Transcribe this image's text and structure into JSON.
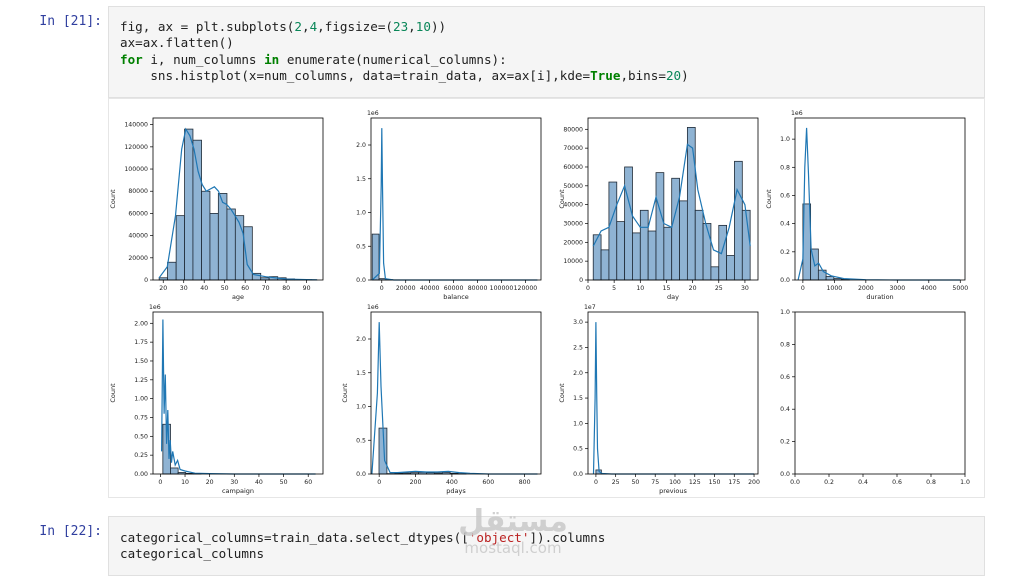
{
  "cells": [
    {
      "prompt": "In [21]:",
      "code_lines": [
        "fig, ax = plt.subplots(2,4,figsize=(23,10))",
        "ax=ax.flatten()",
        "for i, num_columns in enumerate(numerical_columns):",
        "    sns.histplot(x=num_columns, data=train_data, ax=ax[i],kde=True,bins=20)"
      ]
    },
    {
      "prompt": "In [22]:",
      "code_lines": [
        "categorical_columns=train_data.select_dtypes(['object']).columns",
        "categorical_columns"
      ]
    }
  ],
  "watermark": {
    "arabic": "مستقل",
    "latin": "mostaql.com"
  },
  "colors": {
    "bar_fill": "#8fb3d3",
    "bar_edge": "#1f2a36",
    "kde_line": "#1f77b4",
    "prompt": "#303f9f"
  },
  "chart_data": [
    {
      "type": "bar",
      "xlabel": "age",
      "ylabel": "Count",
      "offset": "",
      "xlim": [
        15,
        98
      ],
      "ylim": [
        0,
        146000
      ],
      "xticks": [
        20,
        30,
        40,
        50,
        60,
        70,
        80,
        90
      ],
      "yticks": [
        0,
        20000,
        40000,
        60000,
        80000,
        100000,
        120000,
        140000
      ],
      "bin_edges": [
        18,
        22.1,
        26.3,
        30.4,
        34.5,
        38.7,
        42.8,
        46.9,
        51.1,
        55.2,
        59.3,
        63.5,
        67.6,
        71.7,
        75.9,
        80,
        84.1,
        88.3,
        92.4,
        95
      ],
      "values": [
        2000,
        16000,
        58000,
        136000,
        126000,
        80000,
        60000,
        78000,
        64000,
        58000,
        48000,
        6000,
        2000,
        3000,
        2000,
        1000,
        500,
        300,
        200
      ],
      "kde_x": [
        18,
        22,
        26,
        29,
        31,
        33,
        35,
        37,
        39,
        41,
        43,
        45,
        47,
        49,
        51,
        53,
        55,
        57,
        59,
        61,
        64,
        70,
        80,
        95
      ],
      "kde_y": [
        2000,
        12000,
        58000,
        118000,
        136000,
        130000,
        118000,
        98000,
        86000,
        80000,
        82000,
        84000,
        80000,
        70000,
        68000,
        64000,
        58000,
        52000,
        42000,
        14000,
        5000,
        3000,
        800,
        100
      ]
    },
    {
      "type": "bar",
      "xlabel": "balance",
      "ylabel": "",
      "offset": "1e6",
      "xlim": [
        -9000,
        133000
      ],
      "ylim": [
        0,
        2.4
      ],
      "xticks": [
        0,
        20000,
        40000,
        60000,
        80000,
        100000,
        120000
      ],
      "yticks": [
        0.0,
        0.5,
        1.0,
        1.5,
        2.0
      ],
      "bin_edges": [
        -8000,
        -2300,
        3500,
        9200,
        14900
      ],
      "values": [
        0.68,
        0.02,
        0.005,
        0.002
      ],
      "kde_x": [
        -8000,
        -2000,
        -500,
        0,
        600,
        1500,
        3000,
        10000,
        130000
      ],
      "kde_y": [
        0,
        0.1,
        1.4,
        2.25,
        1.4,
        0.25,
        0.02,
        0.0,
        0
      ]
    },
    {
      "type": "bar",
      "xlabel": "day",
      "ylabel": "Count",
      "offset": "",
      "xlim": [
        0,
        32.5
      ],
      "ylim": [
        0,
        86000
      ],
      "xticks": [
        0,
        5,
        10,
        15,
        20,
        25,
        30
      ],
      "yticks": [
        0,
        10000,
        20000,
        30000,
        40000,
        50000,
        60000,
        70000,
        80000
      ],
      "bin_edges": [
        1,
        2.5,
        4,
        5.5,
        7,
        8.5,
        10,
        11.5,
        13,
        14.5,
        16,
        17.5,
        19,
        20.5,
        22,
        23.5,
        25,
        26.5,
        28,
        29.5,
        31
      ],
      "values": [
        24000,
        16000,
        52000,
        31000,
        60000,
        25000,
        37000,
        26000,
        57000,
        28000,
        54000,
        42000,
        81000,
        37000,
        30000,
        7000,
        29000,
        13000,
        63000,
        37000
      ],
      "kde_x": [
        1,
        2.5,
        4,
        5.5,
        7,
        8.5,
        10,
        11.5,
        13,
        14.5,
        16,
        17.5,
        19,
        20,
        21,
        22.5,
        24,
        25.5,
        27,
        28.5,
        30,
        31
      ],
      "kde_y": [
        18000,
        26000,
        28000,
        40000,
        50000,
        34000,
        28000,
        28000,
        44000,
        30000,
        28000,
        44000,
        72000,
        70000,
        48000,
        30000,
        16000,
        14000,
        28000,
        48000,
        40000,
        18000
      ]
    },
    {
      "type": "bar",
      "xlabel": "duration",
      "ylabel": "Count",
      "offset": "1e6",
      "xlim": [
        -250,
        5150
      ],
      "ylim": [
        0,
        1.15
      ],
      "xticks": [
        0,
        1000,
        2000,
        3000,
        4000,
        5000
      ],
      "yticks": [
        0.0,
        0.2,
        0.4,
        0.6,
        0.8,
        1.0
      ],
      "bin_edges": [
        0,
        246,
        492,
        738,
        984,
        1230,
        1476
      ],
      "values": [
        0.54,
        0.22,
        0.07,
        0.025,
        0.01,
        0.004
      ],
      "kde_x": [
        -150,
        0,
        60,
        120,
        180,
        260,
        380,
        500,
        650,
        900,
        1300,
        2000,
        3000,
        5000
      ],
      "kde_y": [
        0,
        0.15,
        0.8,
        1.08,
        0.75,
        0.22,
        0.1,
        0.12,
        0.06,
        0.03,
        0.01,
        0.002,
        0,
        0
      ]
    },
    {
      "type": "bar",
      "xlabel": "campaign",
      "ylabel": "Count",
      "offset": "1e6",
      "xlim": [
        -3,
        66
      ],
      "ylim": [
        0,
        2.15
      ],
      "xticks": [
        0,
        10,
        20,
        30,
        40,
        50,
        60
      ],
      "yticks": [
        0.0,
        0.25,
        0.5,
        0.75,
        1.0,
        1.25,
        1.5,
        1.75,
        2.0
      ],
      "bin_edges": [
        1,
        4.1,
        7.2,
        10.3,
        13.4,
        16.5
      ],
      "values": [
        0.66,
        0.08,
        0.02,
        0.008,
        0.003
      ],
      "kde_x": [
        0.5,
        1,
        1.5,
        2,
        2.5,
        3,
        3.5,
        4,
        4.5,
        5,
        6,
        7,
        8,
        10,
        14,
        20,
        30,
        63
      ],
      "kde_y": [
        0.3,
        2.05,
        0.8,
        1.32,
        0.4,
        0.85,
        0.2,
        0.45,
        0.15,
        0.3,
        0.12,
        0.18,
        0.06,
        0.04,
        0.01,
        0.005,
        0,
        0
      ]
    },
    {
      "type": "bar",
      "xlabel": "pdays",
      "ylabel": "Count",
      "offset": "1e6",
      "xlim": [
        -45,
        890
      ],
      "ylim": [
        0,
        2.4
      ],
      "xticks": [
        0,
        200,
        400,
        600,
        800
      ],
      "yticks": [
        0.0,
        0.5,
        1.0,
        1.5,
        2.0
      ],
      "bin_edges": [
        -1,
        42.5,
        86,
        129.5,
        173,
        216.5,
        260,
        303.5,
        347,
        390.5,
        434,
        477.5
      ],
      "values": [
        0.68,
        0.005,
        0.01,
        0.015,
        0.02,
        0.025,
        0.02,
        0.015,
        0.025,
        0.01,
        0.005
      ],
      "kde_x": [
        -40,
        -10,
        0,
        10,
        30,
        60,
        100,
        150,
        200,
        260,
        320,
        380,
        440,
        500,
        600,
        871
      ],
      "kde_y": [
        0,
        1.2,
        2.25,
        1.3,
        0.2,
        0.02,
        0.02,
        0.03,
        0.04,
        0.03,
        0.03,
        0.04,
        0.02,
        0.01,
        0,
        0
      ]
    },
    {
      "type": "bar",
      "xlabel": "previous",
      "ylabel": "Count",
      "offset": "1e7",
      "xlim": [
        -10,
        205
      ],
      "ylim": [
        0,
        3.2
      ],
      "xticks": [
        0,
        25,
        50,
        75,
        100,
        125,
        150,
        175,
        200
      ],
      "yticks": [
        0.0,
        0.5,
        1.0,
        1.5,
        2.0,
        2.5,
        3.0
      ],
      "bin_edges": [
        0,
        6.9,
        13.8
      ],
      "values": [
        0.08,
        0.002
      ],
      "kde_x": [
        -3,
        -1,
        0,
        1,
        2,
        4,
        8,
        20,
        200
      ],
      "kde_y": [
        0,
        1.5,
        3.0,
        1.6,
        0.5,
        0.05,
        0.01,
        0,
        0
      ]
    },
    {
      "type": "bar",
      "xlabel": "",
      "ylabel": "",
      "offset": "",
      "xlim": [
        0,
        1
      ],
      "ylim": [
        0,
        1
      ],
      "xticks": [
        0.0,
        0.2,
        0.4,
        0.6,
        0.8,
        1.0
      ],
      "yticks": [
        0.0,
        0.2,
        0.4,
        0.6,
        0.8,
        1.0
      ],
      "bin_edges": [],
      "values": [],
      "kde_x": [],
      "kde_y": []
    }
  ]
}
